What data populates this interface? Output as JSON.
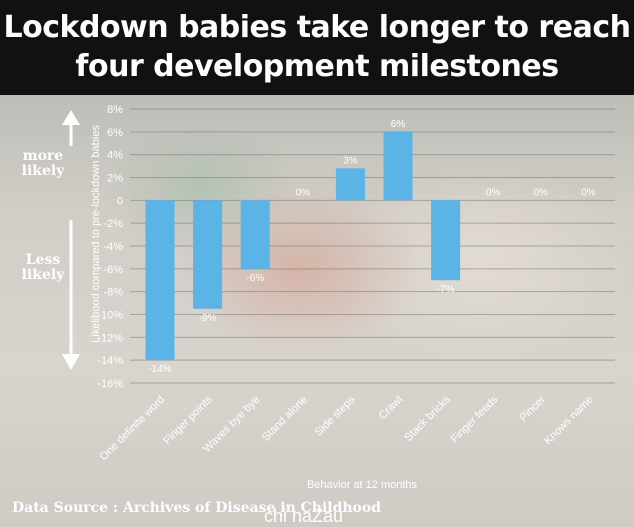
{
  "title_line1": "Lockdown babies take longer to reach",
  "title_line2": "four development milestones",
  "side_labels": {
    "up_line1": "more",
    "up_line2": "likely",
    "down_line1": "Less",
    "down_line2": "likely"
  },
  "source": "Data Source : Archives of Disease in Childhood",
  "watermark": "chi naZau",
  "colors": {
    "bar": "#5ab4e6",
    "title_bg": "#111111",
    "text": "#ffffff"
  },
  "chart_data": {
    "type": "bar",
    "xlabel": "Behavior at 12 months",
    "ylabel": "Likelihood compared to pre-lockdown babies",
    "ylim": [
      -16,
      8
    ],
    "yticks": [
      8,
      6,
      4,
      2,
      0,
      -2,
      -4,
      -6,
      -8,
      -10,
      -12,
      -14,
      -16
    ],
    "ytick_labels": [
      "8%",
      "6%",
      "4%",
      "2%",
      "0",
      "-2%",
      "-4%",
      "-6%",
      "-8%",
      "-10%",
      "-12%",
      "-14%",
      "-16%"
    ],
    "grid": true,
    "categories": [
      "One definite word",
      "Finger points",
      "Waves bye bye",
      "Stand alone",
      "Side steps",
      "Crawl",
      "Stack bricks",
      "Finger feeds",
      "Pincer",
      "Knows name"
    ],
    "values": [
      -14,
      -9.5,
      -6,
      0,
      2.8,
      6,
      -7,
      0,
      0,
      0
    ],
    "data_labels": [
      "-14%",
      "-9%",
      "-6%",
      "0%",
      "3%",
      "6%",
      "-7%",
      "0%",
      "0%",
      "0%"
    ]
  }
}
